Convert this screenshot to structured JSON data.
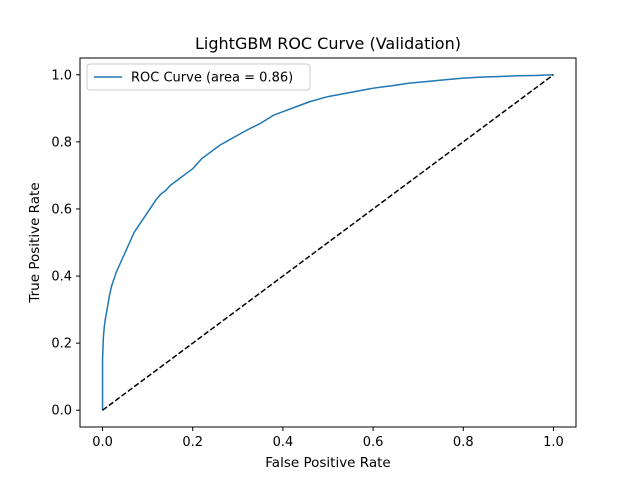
{
  "chart_data": {
    "type": "line",
    "title": "LightGBM ROC Curve (Validation)",
    "xlabel": "False Positive Rate",
    "ylabel": "True Positive Rate",
    "xlim": [
      -0.05,
      1.05
    ],
    "ylim": [
      -0.05,
      1.05
    ],
    "xticks": [
      0.0,
      0.2,
      0.4,
      0.6,
      0.8,
      1.0
    ],
    "yticks": [
      0.0,
      0.2,
      0.4,
      0.6,
      0.8,
      1.0
    ],
    "xtick_labels": [
      "0.0",
      "0.2",
      "0.4",
      "0.6",
      "0.8",
      "1.0"
    ],
    "ytick_labels": [
      "0.0",
      "0.2",
      "0.4",
      "0.6",
      "0.8",
      "1.0"
    ],
    "grid": false,
    "legend_position": "upper-left",
    "series": [
      {
        "name": "ROC Curve (area = 0.86)",
        "color": "#1f77b4",
        "style": "solid",
        "x": [
          0.0,
          0.0,
          0.001,
          0.002,
          0.004,
          0.006,
          0.01,
          0.015,
          0.02,
          0.03,
          0.04,
          0.05,
          0.06,
          0.07,
          0.08,
          0.09,
          0.1,
          0.11,
          0.12,
          0.13,
          0.14,
          0.15,
          0.17,
          0.19,
          0.2,
          0.22,
          0.24,
          0.26,
          0.28,
          0.3,
          0.32,
          0.35,
          0.38,
          0.4,
          0.43,
          0.46,
          0.5,
          0.54,
          0.58,
          0.6,
          0.64,
          0.68,
          0.72,
          0.76,
          0.8,
          0.84,
          0.88,
          0.92,
          0.96,
          1.0
        ],
        "y": [
          0.0,
          0.15,
          0.19,
          0.22,
          0.25,
          0.27,
          0.3,
          0.34,
          0.37,
          0.41,
          0.44,
          0.47,
          0.5,
          0.53,
          0.55,
          0.57,
          0.59,
          0.61,
          0.63,
          0.645,
          0.655,
          0.67,
          0.69,
          0.71,
          0.72,
          0.75,
          0.77,
          0.79,
          0.805,
          0.82,
          0.835,
          0.855,
          0.88,
          0.89,
          0.905,
          0.92,
          0.935,
          0.945,
          0.955,
          0.96,
          0.967,
          0.975,
          0.98,
          0.985,
          0.99,
          0.993,
          0.995,
          0.997,
          0.998,
          1.0
        ]
      },
      {
        "name": "",
        "color": "#000000",
        "style": "dashed",
        "x": [
          0.0,
          1.0
        ],
        "y": [
          0.0,
          1.0
        ]
      }
    ]
  }
}
